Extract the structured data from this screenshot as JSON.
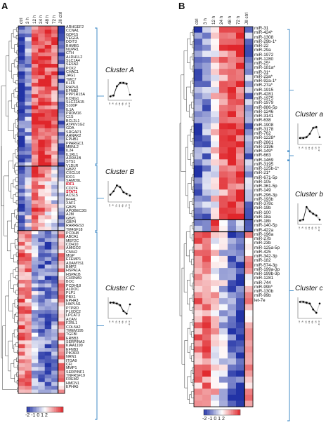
{
  "panel_a": {
    "letter": "A",
    "columns": [
      "ctrl",
      "3 h",
      "12 h",
      "24 h",
      "48 h",
      "72 h",
      "JII ctrl"
    ],
    "genes": [
      "ARHGEF2",
      "CCNA1",
      "GDF15",
      "VEGFA",
      "DDIT3",
      "BHMB1",
      "NUPR1",
      "CTH",
      "ALDH1L2",
      "SLC1A4",
      "SESN2",
      "PCK2",
      "CHAC1",
      "JAG1",
      "TMC7",
      "KLF5",
      "RAPH1",
      "EFNB2",
      "PPP1R15A",
      "KCNG1",
      "SLC22A15",
      "S100P",
      "IL1A",
      "PRDM16",
      "C1S",
      "BCL2L1",
      "ATP6V1G2",
      "GDA",
      "SRGAP1",
      "AHNAK2",
      "EPHB1",
      "PPARGC1",
      "MBNL2",
      "IL24",
      "IL1RL1",
      "ADRA1B",
      "STS1",
      "VLDLR",
      "GBP2",
      "CXCL10",
      "IDO1",
      "SAMD9L",
      "IRF1",
      "CD274",
      "STAT1",
      "ACSL5",
      "IFI44L",
      "XAF1",
      "GBP5",
      "APOBEC3G",
      "A2M",
      "GBP1",
      "GBP4",
      "RARRES3",
      "TM4SF18",
      "PCDH8",
      "ABCA1",
      "MEF2C",
      "CDH10",
      "AMIGO2",
      "CNIH2",
      "MGP",
      "EFEMP1",
      "ADAMTS1",
      "BMP2",
      "HSPA1A",
      "HSPA1B",
      "CHRNA9",
      "BOC",
      "PCDH18",
      "ALDOC",
      "PLP1",
      "PBX1",
      "EPHA3",
      "HAPLN1",
      "PTPRD",
      "PLXDC2",
      "LPCAT3",
      "ACAN",
      "F2RL1",
      "COL5A2",
      "TMEM195",
      "TGFBI",
      "ERBB3",
      "SERPINA3",
      "KIAA1199",
      "EFNB3",
      "PIK3R3",
      "NRN1",
      "ITGA9",
      "CFI",
      "MMP1",
      "SERPINF1",
      "TNFRSF19",
      "FREM2",
      "HMCN1",
      "EPHA5"
    ],
    "red_genes": [
      "IRF1",
      "STAT1"
    ],
    "clusters": [
      {
        "label": "Cluster A",
        "x_labels": [
          "ctrl",
          "3h",
          "12h",
          "24h",
          "48h",
          "72h",
          "JII ctrl"
        ]
      },
      {
        "label": "Cluster B",
        "x_labels": [
          "ctrl",
          "3h",
          "12h",
          "24h",
          "48h",
          "72h",
          "JII ctrl"
        ]
      },
      {
        "label": "Cluster C",
        "x_labels": [
          "ctrl",
          "3h",
          "12h",
          "24h",
          "48h",
          "72h",
          "JII ctrl"
        ]
      }
    ],
    "legend_ticks": "-2 -1 0 1 2"
  },
  "panel_b": {
    "letter": "B",
    "columns": [
      "ctrl",
      "3 h",
      "12 h",
      "24 h",
      "48 h",
      "72 h",
      "JII ctrl"
    ],
    "mirnas": [
      "miR-31",
      "miR-424*",
      "miR-1308",
      "miR-29b-1*",
      "miR-22",
      "miR-29a",
      "miR-1972",
      "miR-1280",
      "miR-25*",
      "miR-181a*",
      "miR-31*",
      "miR-23a*",
      "miR-92a-1*",
      "miR-27a*",
      "miR-1915",
      "miR-4281",
      "miR-1975",
      "miR-1979",
      "miR-886-5p",
      "miR-1246",
      "miR-3141",
      "miR-638",
      "miR-1908",
      "miR-3178",
      "miR-762",
      "miR-1228*",
      "miR-2861",
      "miR-3196",
      "miR-149*",
      "miR-663",
      "miR-1469",
      "miR-3195",
      "miR-125b-1*",
      "miR-21*",
      "miR-671-5p",
      "miR-105",
      "miR-361-5p",
      "miR-149",
      "miR-296-3p",
      "miR-193b",
      "miR-378c",
      "miR-19b",
      "miR-100",
      "miR-18a",
      "miR-18b",
      "miR-140-5p",
      "miR-422a",
      "miR-196a",
      "miR-27b",
      "miR-23b",
      "miR-125a-5p",
      "miR-425",
      "miR-342-3p",
      "miR-182",
      "miR-574-3p",
      "miR-199a-3p",
      "miR-199b-3p",
      "miR-1281",
      "miR-744",
      "miR-99b*",
      "miR-130b",
      "miR-99b",
      "let-7e"
    ],
    "clusters": [
      {
        "label": "Cluster a",
        "x_labels": [
          "ctrl",
          "3h",
          "12h",
          "24h",
          "48h",
          "72h",
          "JII ctrl"
        ]
      },
      {
        "label": "Cluster b",
        "x_labels": [
          "ctrl",
          "3h",
          "12h",
          "24h",
          "48h",
          "72h",
          "JII ctrl"
        ]
      },
      {
        "label": "Cluster c",
        "x_labels": [
          "ctrl",
          "3h",
          "12h",
          "24h",
          "48h",
          "72h",
          "JII ctrl"
        ]
      }
    ],
    "legend_ticks": "-2 -1 0 1 2"
  },
  "colors": {
    "low": "#2233a6",
    "mid": "#ffffff",
    "high": "#e0262b"
  }
}
